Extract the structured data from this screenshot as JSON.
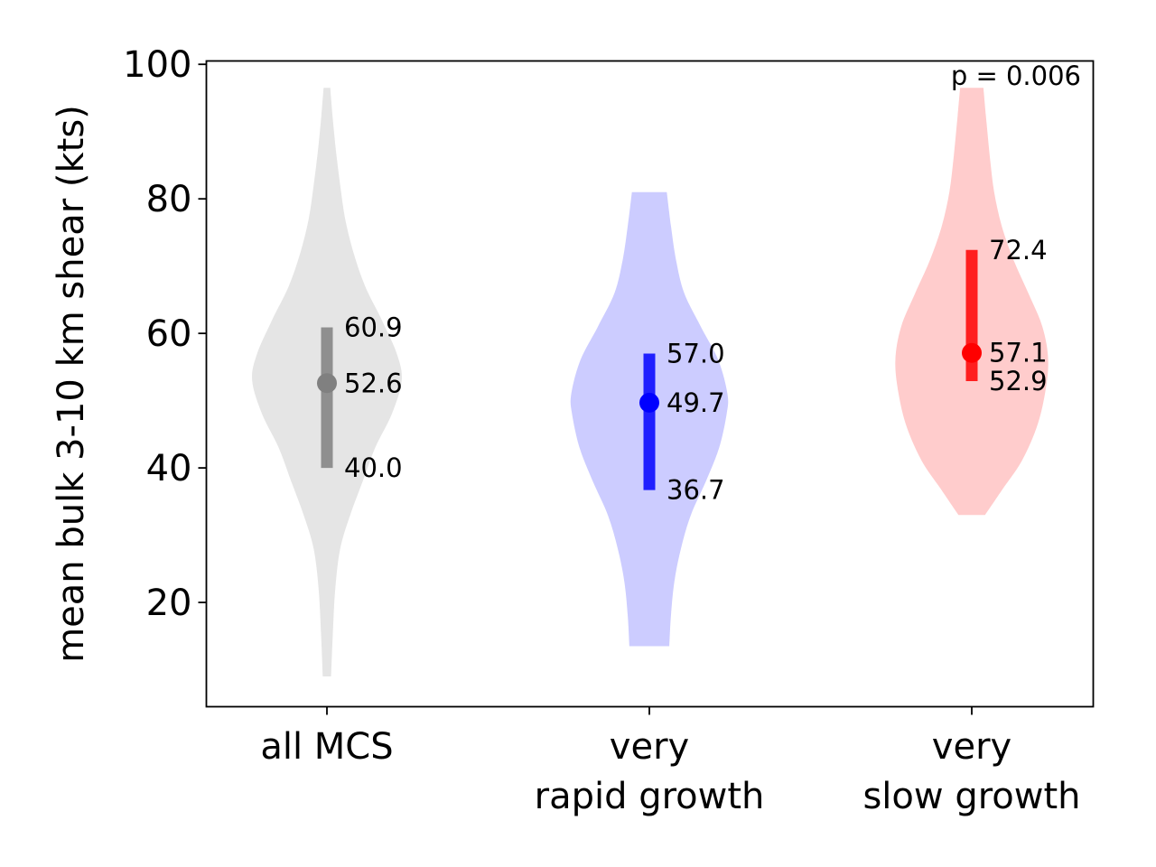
{
  "chart_data": {
    "type": "violin",
    "ylabel": "mean bulk 3-10 km shear (kts)",
    "ylim": [
      4.5,
      100.5
    ],
    "yticks": [
      20,
      40,
      60,
      80,
      100
    ],
    "grid": false,
    "annotation": "p = 0.006",
    "categories": [
      {
        "lines": [
          "all MCS"
        ]
      },
      {
        "lines": [
          "very",
          "rapid growth"
        ]
      },
      {
        "lines": [
          "very",
          "slow growth"
        ]
      }
    ],
    "series": [
      {
        "category": "all MCS",
        "color": "#808080",
        "fill": "#e5e5e5",
        "median": 52.6,
        "q_low": 40.0,
        "q_high": 60.9,
        "median_label": "52.6",
        "q_low_label": "40.0",
        "q_high_label": "60.9",
        "min": 9,
        "max": 96.5,
        "profile": [
          [
            9,
            0.05
          ],
          [
            15,
            0.07
          ],
          [
            22,
            0.1
          ],
          [
            28,
            0.16
          ],
          [
            33,
            0.28
          ],
          [
            38,
            0.43
          ],
          [
            43,
            0.58
          ],
          [
            48,
            0.78
          ],
          [
            53,
            0.9
          ],
          [
            57,
            0.84
          ],
          [
            62,
            0.66
          ],
          [
            67,
            0.46
          ],
          [
            72,
            0.32
          ],
          [
            77,
            0.22
          ],
          [
            82,
            0.16
          ],
          [
            87,
            0.11
          ],
          [
            92,
            0.07
          ],
          [
            96.5,
            0.04
          ]
        ]
      },
      {
        "category": "very rapid growth",
        "color": "#0000ff",
        "fill": "#ccccff",
        "median": 49.7,
        "q_low": 36.7,
        "q_high": 57.0,
        "median_label": "49.7",
        "q_low_label": "36.7",
        "q_high_label": "57.0",
        "min": 13.5,
        "max": 81,
        "profile": [
          [
            13.5,
            0.24
          ],
          [
            18,
            0.26
          ],
          [
            23,
            0.3
          ],
          [
            28,
            0.38
          ],
          [
            33,
            0.5
          ],
          [
            38,
            0.68
          ],
          [
            43,
            0.84
          ],
          [
            48,
            0.93
          ],
          [
            51,
            0.94
          ],
          [
            56,
            0.83
          ],
          [
            61,
            0.62
          ],
          [
            66,
            0.42
          ],
          [
            71,
            0.32
          ],
          [
            76,
            0.26
          ],
          [
            81,
            0.21
          ]
        ]
      },
      {
        "category": "very slow growth",
        "color": "#ff0000",
        "fill": "#ffcccc",
        "median": 57.1,
        "q_low": 52.9,
        "q_high": 72.4,
        "median_label": "57.1",
        "q_low_label": "52.9",
        "q_high_label": "72.4",
        "min": 33,
        "max": 96.5,
        "profile": [
          [
            33,
            0.16
          ],
          [
            37,
            0.38
          ],
          [
            41,
            0.6
          ],
          [
            46,
            0.78
          ],
          [
            51,
            0.88
          ],
          [
            56,
            0.92
          ],
          [
            61,
            0.85
          ],
          [
            66,
            0.68
          ],
          [
            71,
            0.5
          ],
          [
            76,
            0.36
          ],
          [
            81,
            0.27
          ],
          [
            86,
            0.22
          ],
          [
            91,
            0.18
          ],
          [
            96.5,
            0.14
          ]
        ]
      }
    ]
  }
}
